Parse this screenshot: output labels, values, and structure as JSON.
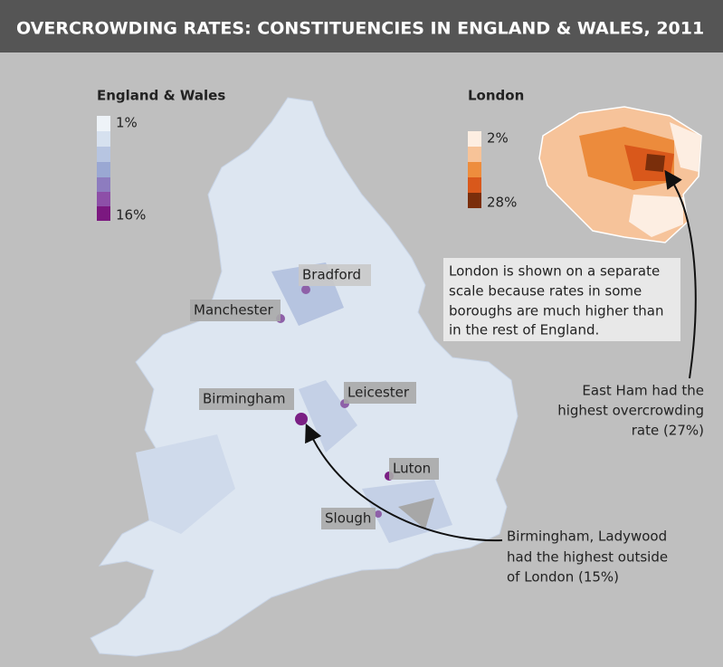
{
  "header": {
    "title": "OVERCROWDING RATES: CONSTITUENCIES IN ENGLAND & WALES, 2011"
  },
  "legends": [
    {
      "title": "England & Wales",
      "min_label": "1%",
      "max_label": "16%"
    },
    {
      "title": "London",
      "min_label": "2%",
      "max_label": "28%"
    }
  ],
  "cities": [
    "Bradford",
    "Manchester",
    "Birmingham",
    "Leicester",
    "Luton",
    "Slough"
  ],
  "annotations": {
    "london_note": [
      "London is shown on a separate",
      "scale because rates in some",
      "boroughs are much higher than",
      "in the rest of England."
    ],
    "east_ham": [
      "East Ham had the",
      "highest overcrowding",
      "rate (27%)"
    ],
    "birmingham": [
      "Birmingham, Ladywood",
      "had the highest outside",
      "of London (15%)"
    ]
  }
}
